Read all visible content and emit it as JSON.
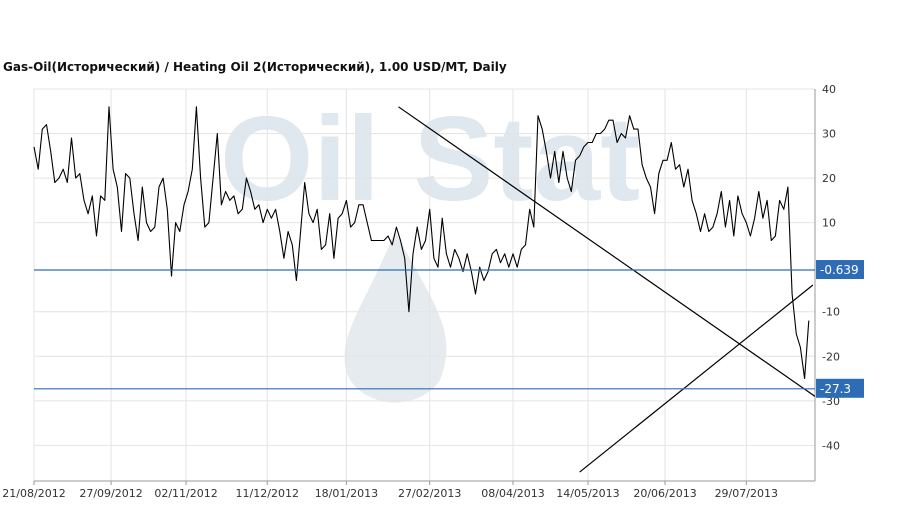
{
  "title": "Gas-Oil(Исторический) / Heating Oil 2(Исторический), 1.00 USD/MT, Daily",
  "colors": {
    "series": "#000000",
    "trendline": "#000000",
    "hline": "#2e6db5",
    "label_bg": "#2e6db5",
    "grid": "#e4e4e4",
    "axis": "#999999",
    "watermark": "#dfe7ef"
  },
  "watermark": {
    "text": "Oil Stat",
    "icon": "oil-drop-icon"
  },
  "chart_data": {
    "type": "line",
    "title": "Gas-Oil(Исторический) / Heating Oil 2(Исторический), 1.00 USD/MT, Daily",
    "xlabel": "",
    "ylabel": "",
    "ylim": [
      -48,
      40
    ],
    "yticks": [
      40,
      30,
      20,
      10,
      -10,
      -20,
      -30,
      -40
    ],
    "xtick_labels": [
      "21/08/2012",
      "27/09/2012",
      "02/11/2012",
      "11/12/2012",
      "18/01/2013",
      "27/02/2013",
      "08/04/2013",
      "14/05/2013",
      "20/06/2013",
      "29/07/2013"
    ],
    "x_range": [
      "2012-08-21",
      "2013-08-31"
    ],
    "grid": true,
    "series": [
      {
        "points": [
          [
            "2012-08-21",
            27
          ],
          [
            "2012-08-23",
            22
          ],
          [
            "2012-08-25",
            31
          ],
          [
            "2012-08-27",
            32
          ],
          [
            "2012-08-29",
            26
          ],
          [
            "2012-08-31",
            19
          ],
          [
            "2012-09-02",
            20
          ],
          [
            "2012-09-04",
            22
          ],
          [
            "2012-09-06",
            19
          ],
          [
            "2012-09-08",
            29
          ],
          [
            "2012-09-10",
            20
          ],
          [
            "2012-09-12",
            21
          ],
          [
            "2012-09-14",
            15
          ],
          [
            "2012-09-16",
            12
          ],
          [
            "2012-09-18",
            16
          ],
          [
            "2012-09-20",
            7
          ],
          [
            "2012-09-22",
            16
          ],
          [
            "2012-09-24",
            15
          ],
          [
            "2012-09-26",
            36
          ],
          [
            "2012-09-28",
            22
          ],
          [
            "2012-09-30",
            18
          ],
          [
            "2012-10-02",
            8
          ],
          [
            "2012-10-04",
            21
          ],
          [
            "2012-10-06",
            20
          ],
          [
            "2012-10-08",
            12
          ],
          [
            "2012-10-10",
            6
          ],
          [
            "2012-10-12",
            18
          ],
          [
            "2012-10-14",
            10
          ],
          [
            "2012-10-16",
            8
          ],
          [
            "2012-10-18",
            9
          ],
          [
            "2012-10-20",
            18
          ],
          [
            "2012-10-22",
            20
          ],
          [
            "2012-10-24",
            13
          ],
          [
            "2012-10-26",
            -2
          ],
          [
            "2012-10-28",
            10
          ],
          [
            "2012-10-30",
            8
          ],
          [
            "2012-11-01",
            14
          ],
          [
            "2012-11-03",
            17
          ],
          [
            "2012-11-05",
            22
          ],
          [
            "2012-11-07",
            36
          ],
          [
            "2012-11-09",
            20
          ],
          [
            "2012-11-11",
            9
          ],
          [
            "2012-11-13",
            10
          ],
          [
            "2012-11-15",
            20
          ],
          [
            "2012-11-17",
            30
          ],
          [
            "2012-11-19",
            14
          ],
          [
            "2012-11-21",
            17
          ],
          [
            "2012-11-23",
            15
          ],
          [
            "2012-11-25",
            16
          ],
          [
            "2012-11-27",
            12
          ],
          [
            "2012-11-29",
            13
          ],
          [
            "2012-12-01",
            20
          ],
          [
            "2012-12-03",
            17
          ],
          [
            "2012-12-05",
            13
          ],
          [
            "2012-12-07",
            14
          ],
          [
            "2012-12-09",
            10
          ],
          [
            "2012-12-11",
            13
          ],
          [
            "2012-12-13",
            11
          ],
          [
            "2012-12-15",
            13
          ],
          [
            "2012-12-17",
            8
          ],
          [
            "2012-12-19",
            2
          ],
          [
            "2012-12-21",
            8
          ],
          [
            "2012-12-23",
            5
          ],
          [
            "2012-12-25",
            -3
          ],
          [
            "2012-12-27",
            8
          ],
          [
            "2012-12-29",
            19
          ],
          [
            "2012-12-31",
            12
          ],
          [
            "2013-01-02",
            10
          ],
          [
            "2013-01-04",
            13
          ],
          [
            "2013-01-06",
            4
          ],
          [
            "2013-01-08",
            5
          ],
          [
            "2013-01-10",
            12
          ],
          [
            "2013-01-12",
            2
          ],
          [
            "2013-01-14",
            11
          ],
          [
            "2013-01-16",
            12
          ],
          [
            "2013-01-18",
            15
          ],
          [
            "2013-01-20",
            9
          ],
          [
            "2013-01-22",
            10
          ],
          [
            "2013-01-24",
            14
          ],
          [
            "2013-01-26",
            14
          ],
          [
            "2013-01-28",
            10
          ],
          [
            "2013-01-30",
            6
          ],
          [
            "2013-02-01",
            6
          ],
          [
            "2013-02-03",
            6
          ],
          [
            "2013-02-05",
            6
          ],
          [
            "2013-02-07",
            7
          ],
          [
            "2013-02-09",
            5
          ],
          [
            "2013-02-11",
            9
          ],
          [
            "2013-02-13",
            6
          ],
          [
            "2013-02-15",
            2
          ],
          [
            "2013-02-17",
            -10
          ],
          [
            "2013-02-19",
            3
          ],
          [
            "2013-02-21",
            9
          ],
          [
            "2013-02-23",
            4
          ],
          [
            "2013-02-25",
            6
          ],
          [
            "2013-02-27",
            13
          ],
          [
            "2013-03-01",
            2
          ],
          [
            "2013-03-03",
            0
          ],
          [
            "2013-03-05",
            11
          ],
          [
            "2013-03-07",
            3
          ],
          [
            "2013-03-09",
            0
          ],
          [
            "2013-03-11",
            4
          ],
          [
            "2013-03-13",
            2
          ],
          [
            "2013-03-15",
            -1
          ],
          [
            "2013-03-17",
            3
          ],
          [
            "2013-03-19",
            -1
          ],
          [
            "2013-03-21",
            -6
          ],
          [
            "2013-03-23",
            0
          ],
          [
            "2013-03-25",
            -3
          ],
          [
            "2013-03-27",
            -1
          ],
          [
            "2013-03-29",
            3
          ],
          [
            "2013-03-31",
            4
          ],
          [
            "2013-04-02",
            1
          ],
          [
            "2013-04-04",
            3
          ],
          [
            "2013-04-06",
            0
          ],
          [
            "2013-04-08",
            3
          ],
          [
            "2013-04-10",
            0
          ],
          [
            "2013-04-12",
            4
          ],
          [
            "2013-04-14",
            5
          ],
          [
            "2013-04-16",
            13
          ],
          [
            "2013-04-18",
            9
          ],
          [
            "2013-04-20",
            34
          ],
          [
            "2013-04-22",
            31
          ],
          [
            "2013-04-24",
            26
          ],
          [
            "2013-04-26",
            20
          ],
          [
            "2013-04-28",
            26
          ],
          [
            "2013-04-30",
            19
          ],
          [
            "2013-05-02",
            26
          ],
          [
            "2013-05-04",
            20
          ],
          [
            "2013-05-06",
            17
          ],
          [
            "2013-05-08",
            24
          ],
          [
            "2013-05-10",
            25
          ],
          [
            "2013-05-12",
            27
          ],
          [
            "2013-05-14",
            28
          ],
          [
            "2013-05-16",
            28
          ],
          [
            "2013-05-18",
            30
          ],
          [
            "2013-05-20",
            30
          ],
          [
            "2013-05-22",
            31
          ],
          [
            "2013-05-24",
            33
          ],
          [
            "2013-05-26",
            33
          ],
          [
            "2013-05-28",
            28
          ],
          [
            "2013-05-30",
            30
          ],
          [
            "2013-06-01",
            29
          ],
          [
            "2013-06-03",
            34
          ],
          [
            "2013-06-05",
            31
          ],
          [
            "2013-06-07",
            31
          ],
          [
            "2013-06-09",
            23
          ],
          [
            "2013-06-11",
            20
          ],
          [
            "2013-06-13",
            18
          ],
          [
            "2013-06-15",
            12
          ],
          [
            "2013-06-17",
            21
          ],
          [
            "2013-06-19",
            24
          ],
          [
            "2013-06-21",
            24
          ],
          [
            "2013-06-23",
            28
          ],
          [
            "2013-06-25",
            22
          ],
          [
            "2013-06-27",
            23
          ],
          [
            "2013-06-29",
            18
          ],
          [
            "2013-07-01",
            22
          ],
          [
            "2013-07-03",
            15
          ],
          [
            "2013-07-05",
            12
          ],
          [
            "2013-07-07",
            8
          ],
          [
            "2013-07-09",
            12
          ],
          [
            "2013-07-11",
            8
          ],
          [
            "2013-07-13",
            9
          ],
          [
            "2013-07-15",
            12
          ],
          [
            "2013-07-17",
            17
          ],
          [
            "2013-07-19",
            9
          ],
          [
            "2013-07-21",
            15
          ],
          [
            "2013-07-23",
            7
          ],
          [
            "2013-07-25",
            16
          ],
          [
            "2013-07-27",
            12
          ],
          [
            "2013-07-29",
            10
          ],
          [
            "2013-07-31",
            7
          ],
          [
            "2013-08-02",
            11
          ],
          [
            "2013-08-04",
            17
          ],
          [
            "2013-08-06",
            11
          ],
          [
            "2013-08-08",
            15
          ],
          [
            "2013-08-10",
            6
          ],
          [
            "2013-08-12",
            7
          ],
          [
            "2013-08-14",
            15
          ],
          [
            "2013-08-16",
            13
          ],
          [
            "2013-08-18",
            18
          ],
          [
            "2013-08-20",
            -6
          ],
          [
            "2013-08-22",
            -15
          ],
          [
            "2013-08-24",
            -18
          ],
          [
            "2013-08-26",
            -25
          ],
          [
            "2013-08-28",
            -12
          ]
        ]
      }
    ],
    "horizontal_lines": [
      {
        "y": -0.639,
        "label": "-0.639"
      },
      {
        "y": -27.3,
        "label": "-27.3"
      }
    ],
    "trendlines": [
      {
        "from": [
          "2013-02-12",
          36
        ],
        "to": [
          "2013-08-31",
          -29
        ]
      },
      {
        "from": [
          "2013-05-10",
          -46
        ],
        "to": [
          "2013-08-30",
          -4
        ]
      }
    ]
  }
}
